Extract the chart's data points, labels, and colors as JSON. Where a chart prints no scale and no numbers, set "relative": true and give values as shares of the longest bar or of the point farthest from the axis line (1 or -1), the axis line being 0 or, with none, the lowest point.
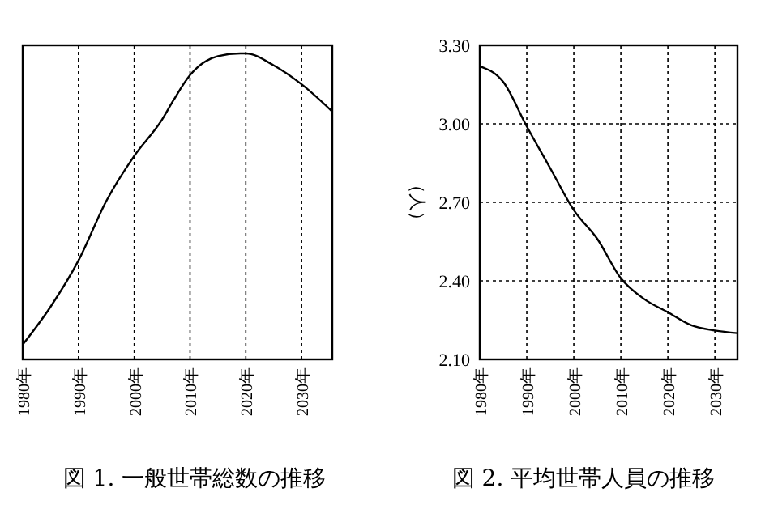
{
  "chart_data": [
    {
      "type": "line",
      "title": "図 1.  一般世帯総数の推移",
      "relative": true,
      "grid": "x",
      "color": "#000000",
      "x": [
        1980,
        1985,
        1990,
        1995,
        2000,
        2005,
        2007,
        2010,
        2015,
        2019,
        2020,
        2025,
        2030,
        2035.5
      ],
      "values": [
        0.048,
        0.172,
        0.323,
        0.518,
        0.665,
        0.784,
        0.846,
        0.929,
        0.991,
        1.0,
        1.0,
        0.961,
        0.899,
        0.81
      ],
      "xlim": [
        1980,
        2035.5
      ],
      "xticks": [
        {
          "value": 1980,
          "label": "1980年"
        },
        {
          "value": 1990,
          "label": "1990年"
        },
        {
          "value": 2000,
          "label": "2000年"
        },
        {
          "value": 2010,
          "label": "2010年"
        },
        {
          "value": 2020,
          "label": "2020年"
        },
        {
          "value": 2030,
          "label": "2030年"
        }
      ]
    },
    {
      "type": "line",
      "title": "図 2.  平均世帯人員の推移",
      "ylabel": "（人）",
      "grid": true,
      "color": "#000000",
      "x": [
        1980,
        1985,
        1990,
        1995,
        2000,
        2005,
        2010,
        2015,
        2020,
        2025,
        2030,
        2034.8
      ],
      "values": [
        3.22,
        3.16,
        2.99,
        2.83,
        2.67,
        2.56,
        2.41,
        2.33,
        2.28,
        2.23,
        2.21,
        2.2
      ],
      "xlim": [
        1980,
        2034.8
      ],
      "xticks": [
        {
          "value": 1980,
          "label": "1980年"
        },
        {
          "value": 1990,
          "label": "1990年"
        },
        {
          "value": 2000,
          "label": "2000年"
        },
        {
          "value": 2010,
          "label": "2010年"
        },
        {
          "value": 2020,
          "label": "2020年"
        },
        {
          "value": 2030,
          "label": "2030年"
        }
      ],
      "ylim": [
        2.1,
        3.3
      ],
      "yticks": [
        {
          "value": 2.1,
          "label": "2.10"
        },
        {
          "value": 2.4,
          "label": "2.40"
        },
        {
          "value": 2.7,
          "label": "2.70"
        },
        {
          "value": 3.0,
          "label": "3.00"
        },
        {
          "value": 3.3,
          "label": "3.30"
        }
      ]
    }
  ]
}
